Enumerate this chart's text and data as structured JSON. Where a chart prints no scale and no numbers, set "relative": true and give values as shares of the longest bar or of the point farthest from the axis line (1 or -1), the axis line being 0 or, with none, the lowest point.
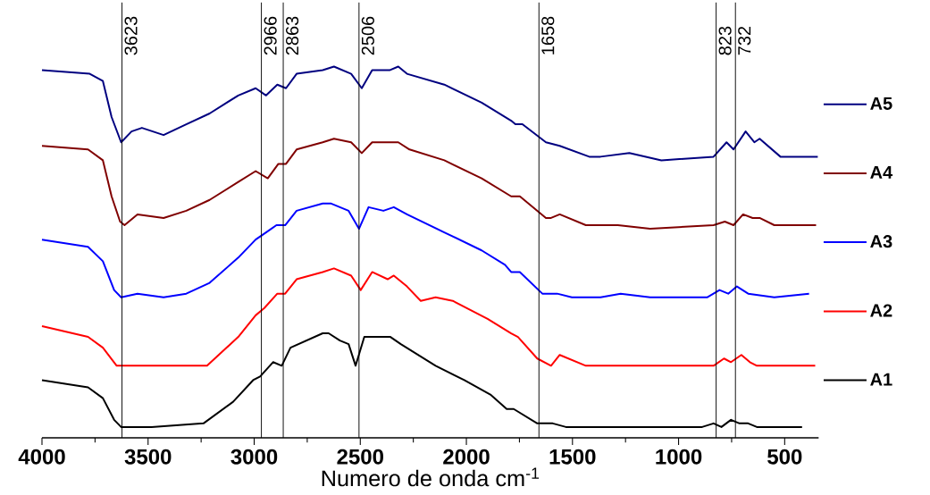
{
  "chart_data": {
    "type": "line",
    "xlabel": "Numero de onda cm$^{-1}$",
    "relative": true,
    "xlim": [
      4000,
      340
    ],
    "xticks": [
      4000,
      3500,
      3000,
      2500,
      2000,
      1500,
      1000,
      500
    ],
    "legend": "right",
    "series": [
      {
        "name": "A5",
        "color": "#000080",
        "x": [
          4000,
          3775,
          3713,
          3672,
          3627,
          3578,
          3529,
          3427,
          3320,
          3210,
          3075,
          2993,
          2944,
          2891,
          2850,
          2800,
          2677,
          2624,
          2543,
          2493,
          2444,
          2362,
          2321,
          2280,
          2104,
          1928,
          1789,
          1769,
          1736,
          1625,
          1560,
          1421,
          1368,
          1232,
          1081,
          835,
          774,
          741,
          684,
          643,
          618,
          520,
          373,
          344
        ],
        "values": [
          0.99,
          0.98,
          0.96,
          0.86,
          0.79,
          0.82,
          0.83,
          0.81,
          0.84,
          0.87,
          0.92,
          0.94,
          0.92,
          0.95,
          0.94,
          0.98,
          0.99,
          1.0,
          0.98,
          0.94,
          0.99,
          0.99,
          1.0,
          0.98,
          0.95,
          0.9,
          0.85,
          0.84,
          0.84,
          0.79,
          0.78,
          0.75,
          0.75,
          0.76,
          0.74,
          0.75,
          0.79,
          0.77,
          0.82,
          0.79,
          0.8,
          0.75,
          0.75,
          0.75
        ]
      },
      {
        "name": "A4",
        "color": "#800000",
        "x": [
          4000,
          3783,
          3713,
          3672,
          3632,
          3611,
          3550,
          3427,
          3320,
          3210,
          3075,
          2993,
          2936,
          2886,
          2850,
          2800,
          2677,
          2624,
          2543,
          2493,
          2444,
          2321,
          2268,
          2104,
          1928,
          1789,
          1748,
          1625,
          1601,
          1560,
          1437,
          1368,
          1286,
          1134,
          835,
          782,
          741,
          696,
          651,
          618,
          549,
          397,
          352
        ],
        "values": [
          0.78,
          0.77,
          0.74,
          0.64,
          0.57,
          0.56,
          0.59,
          0.58,
          0.6,
          0.63,
          0.68,
          0.71,
          0.69,
          0.73,
          0.73,
          0.77,
          0.79,
          0.8,
          0.79,
          0.76,
          0.79,
          0.79,
          0.77,
          0.74,
          0.69,
          0.64,
          0.64,
          0.58,
          0.58,
          0.59,
          0.56,
          0.56,
          0.56,
          0.55,
          0.56,
          0.57,
          0.56,
          0.59,
          0.58,
          0.58,
          0.56,
          0.56,
          0.56
        ]
      },
      {
        "name": "A3",
        "color": "#0000ff",
        "x": [
          4000,
          3783,
          3713,
          3660,
          3627,
          3550,
          3427,
          3320,
          3210,
          3075,
          2993,
          2944,
          2895,
          2854,
          2800,
          2677,
          2637,
          2555,
          2506,
          2461,
          2391,
          2342,
          2280,
          2104,
          1928,
          1818,
          1789,
          1748,
          1642,
          1572,
          1503,
          1368,
          1273,
          1134,
          864,
          807,
          766,
          725,
          672,
          549,
          385
        ],
        "values": [
          0.52,
          0.5,
          0.46,
          0.38,
          0.36,
          0.37,
          0.36,
          0.37,
          0.4,
          0.47,
          0.52,
          0.54,
          0.56,
          0.56,
          0.6,
          0.62,
          0.62,
          0.6,
          0.55,
          0.61,
          0.6,
          0.61,
          0.59,
          0.54,
          0.49,
          0.45,
          0.43,
          0.43,
          0.37,
          0.37,
          0.36,
          0.36,
          0.37,
          0.36,
          0.36,
          0.38,
          0.37,
          0.39,
          0.37,
          0.36,
          0.37
        ]
      },
      {
        "name": "A2",
        "color": "#ff0000",
        "x": [
          4000,
          3783,
          3713,
          3648,
          3550,
          3415,
          3222,
          3075,
          2993,
          2952,
          2891,
          2854,
          2800,
          2677,
          2624,
          2543,
          2498,
          2444,
          2371,
          2342,
          2280,
          2215,
          2145,
          2064,
          1900,
          1789,
          1757,
          1666,
          1601,
          1560,
          1437,
          1368,
          1314,
          1134,
          835,
          786,
          753,
          704,
          664,
          631,
          610,
          577,
          356
        ],
        "values": [
          0.28,
          0.25,
          0.22,
          0.17,
          0.17,
          0.17,
          0.17,
          0.25,
          0.31,
          0.33,
          0.37,
          0.37,
          0.41,
          0.43,
          0.44,
          0.42,
          0.38,
          0.43,
          0.41,
          0.42,
          0.39,
          0.35,
          0.36,
          0.35,
          0.3,
          0.26,
          0.25,
          0.19,
          0.17,
          0.2,
          0.17,
          0.17,
          0.17,
          0.17,
          0.17,
          0.19,
          0.18,
          0.2,
          0.18,
          0.17,
          0.17,
          0.17,
          0.17
        ]
      },
      {
        "name": "A1",
        "color": "#000000",
        "x": [
          4000,
          3783,
          3713,
          3660,
          3627,
          3484,
          3239,
          3099,
          3005,
          2972,
          2911,
          2870,
          2829,
          2677,
          2649,
          2596,
          2555,
          2522,
          2481,
          2399,
          2358,
          2309,
          2145,
          2010,
          1887,
          1810,
          1777,
          1666,
          1593,
          1531,
          1368,
          889,
          835,
          798,
          753,
          713,
          672,
          631,
          418
        ],
        "values": [
          0.13,
          0.11,
          0.08,
          0.02,
          0.0,
          0.0,
          0.01,
          0.07,
          0.13,
          0.14,
          0.18,
          0.17,
          0.22,
          0.26,
          0.26,
          0.24,
          0.23,
          0.17,
          0.25,
          0.25,
          0.25,
          0.23,
          0.17,
          0.13,
          0.09,
          0.05,
          0.05,
          0.01,
          0.01,
          0.0,
          0.0,
          0.0,
          0.01,
          0.0,
          0.02,
          0.01,
          0.01,
          0.0,
          0.0
        ]
      }
    ],
    "ref_lines": [
      {
        "axis": "x",
        "value": 3623,
        "label": "3623"
      },
      {
        "axis": "x",
        "value": 2966,
        "label": "2966"
      },
      {
        "axis": "x",
        "value": 2863,
        "label": "2863"
      },
      {
        "axis": "x",
        "value": 2506,
        "label": "2506"
      },
      {
        "axis": "x",
        "value": 1658,
        "label": "1658"
      },
      {
        "axis": "x",
        "value": 823,
        "label": "823"
      },
      {
        "axis": "x",
        "value": 732,
        "label": "732"
      }
    ]
  }
}
